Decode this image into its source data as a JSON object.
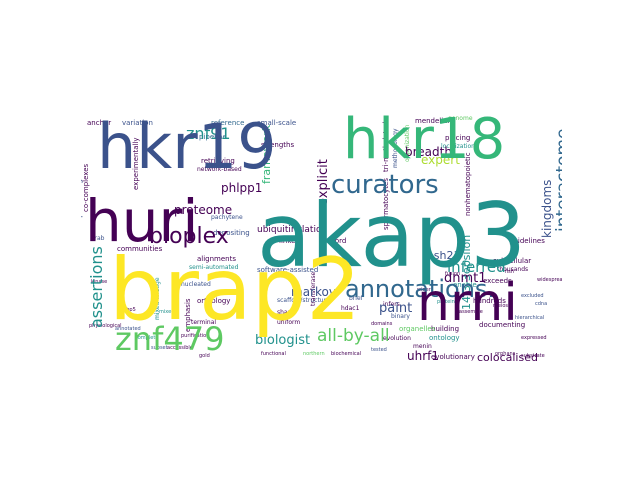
{
  "palette": {
    "dark_purple": "#440154",
    "indigo": "#3b528b",
    "teal": "#21918c",
    "blue": "#31688e",
    "green": "#5ec962",
    "lime": "#addc30",
    "yellow": "#fde725",
    "sea": "#35b779"
  },
  "words": [
    "brap2",
    "akap3",
    "huri",
    "hkr19",
    "hkr18",
    "nrni",
    "curators",
    "annotations.",
    "znf479",
    "bioplex",
    "all-by-all",
    "interactome",
    "inferred",
    "dnmt1",
    "znf91",
    "proteome",
    "assertions",
    "kingdoms",
    "breadth",
    "expert",
    "framework",
    "ubiquitinylation",
    "markov",
    "paint",
    "biologist",
    "uhrf1",
    "colocalised",
    "explicit",
    "phlpp1",
    "ash21",
    "14-3-3epsilon",
    "strengths",
    "reference",
    "variation",
    "anchor",
    "small-scale",
    "mendelian",
    "genome",
    "principles",
    "placing",
    "localization",
    "tri-methylated",
    "methodology",
    "organization",
    "spermatogonia",
    "co-complexes",
    "experimentally",
    "pipeline",
    "retrieving",
    "network-based",
    "depositing",
    "linker",
    "record",
    "spermatocytes",
    "nonhematopoietic",
    "subcellular",
    "thousands",
    "guidelines",
    "communities",
    "pachytene",
    "alignments",
    "software-assisted",
    "semi-automated",
    "orthology",
    "nucleated",
    "emphasis",
    "hundreds",
    "exceeds",
    "enable",
    "building",
    "ontology",
    "documenting",
    "evolutionary",
    "menin",
    "organelles",
    "scaffold/structural",
    "binary",
    "transferase",
    "mixed-lineage",
    "terminal",
    "krab",
    "hdac1",
    "brief",
    "shape",
    "uniform",
    "infers",
    "evolution",
    "tested",
    "mixed",
    "kinase",
    "rbbp5",
    "substrate",
    "fish",
    "northern",
    "excluded",
    "physiological",
    "gold",
    "annotated",
    "complete",
    "accessible",
    "fusion",
    "hierarchical",
    "meiosis",
    "assemble",
    "orphans",
    "purification",
    "functional",
    "subset",
    "wider",
    "proteins",
    "biochemical",
    "expressed",
    "widespread",
    "domains",
    "cdna",
    "mouse"
  ]
}
